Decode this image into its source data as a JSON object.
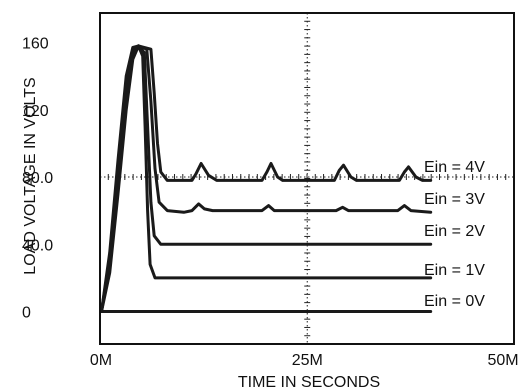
{
  "chart_data": {
    "type": "line",
    "xlabel": "TIME IN SECONDS",
    "ylabel": "LOAD VOLTAGE IN VOLTS",
    "xlim": [
      0,
      50
    ],
    "ylim": [
      -2,
      170
    ],
    "x_ticks": [
      {
        "value": 0,
        "label": "0M"
      },
      {
        "value": 25,
        "label": "25M"
      },
      {
        "value": 50,
        "label": "50M"
      }
    ],
    "y_ticks": [
      {
        "value": 0,
        "label": "0"
      },
      {
        "value": 40,
        "label": "40.0"
      },
      {
        "value": 80,
        "label": "80.0"
      },
      {
        "value": 120,
        "label": "120"
      },
      {
        "value": 160,
        "label": "160"
      }
    ],
    "grid": "center crosshair at x=25 and y=80",
    "series": [
      {
        "name": "Ein = 0V",
        "points": [
          [
            0,
            0
          ],
          [
            40,
            0
          ]
        ]
      },
      {
        "name": "Ein = 1V",
        "points": [
          [
            0,
            0
          ],
          [
            1,
            23
          ],
          [
            2,
            70
          ],
          [
            3,
            120
          ],
          [
            3.8,
            150
          ],
          [
            4.5,
            158
          ],
          [
            5.0,
            152
          ],
          [
            5.3,
            110
          ],
          [
            5.6,
            60
          ],
          [
            5.9,
            28
          ],
          [
            6.5,
            20
          ],
          [
            10,
            20
          ],
          [
            40,
            20
          ]
        ]
      },
      {
        "name": "Ein = 2V",
        "points": [
          [
            0,
            0
          ],
          [
            1,
            28
          ],
          [
            2,
            80
          ],
          [
            3,
            130
          ],
          [
            3.8,
            154
          ],
          [
            4.5,
            158
          ],
          [
            5.2,
            154
          ],
          [
            5.6,
            110
          ],
          [
            6.0,
            65
          ],
          [
            6.4,
            45
          ],
          [
            7.2,
            40
          ],
          [
            12,
            40
          ],
          [
            40,
            40
          ]
        ]
      },
      {
        "name": "Ein = 3V",
        "points": [
          [
            0,
            0
          ],
          [
            1,
            32
          ],
          [
            2,
            85
          ],
          [
            3,
            135
          ],
          [
            3.8,
            156
          ],
          [
            4.5,
            158
          ],
          [
            5.5,
            156
          ],
          [
            6.0,
            125
          ],
          [
            6.5,
            85
          ],
          [
            7.0,
            65
          ],
          [
            8.0,
            60
          ],
          [
            10.0,
            59
          ],
          [
            11.0,
            60
          ],
          [
            11.8,
            64
          ],
          [
            12.5,
            61
          ],
          [
            13.5,
            60
          ],
          [
            19.5,
            60
          ],
          [
            20.3,
            63
          ],
          [
            21.0,
            60
          ],
          [
            28.5,
            60
          ],
          [
            29.3,
            62
          ],
          [
            30.0,
            60
          ],
          [
            36.0,
            60
          ],
          [
            36.8,
            63
          ],
          [
            37.6,
            60
          ],
          [
            40,
            59
          ]
        ]
      },
      {
        "name": "Ein = 4V",
        "points": [
          [
            0,
            0
          ],
          [
            1,
            35
          ],
          [
            2,
            90
          ],
          [
            3,
            140
          ],
          [
            3.8,
            157
          ],
          [
            4.5,
            158
          ],
          [
            6.0,
            156
          ],
          [
            6.4,
            130
          ],
          [
            6.8,
            100
          ],
          [
            7.2,
            83
          ],
          [
            8.0,
            78
          ],
          [
            11.0,
            78
          ],
          [
            11.5,
            82
          ],
          [
            12.1,
            88
          ],
          [
            13.0,
            81
          ],
          [
            14.0,
            78
          ],
          [
            19.5,
            78
          ],
          [
            20.1,
            83
          ],
          [
            20.6,
            88
          ],
          [
            21.4,
            80
          ],
          [
            22.0,
            78
          ],
          [
            28.3,
            78
          ],
          [
            28.9,
            84
          ],
          [
            29.4,
            87
          ],
          [
            30.3,
            80
          ],
          [
            31.0,
            78
          ],
          [
            36.2,
            78
          ],
          [
            36.8,
            83
          ],
          [
            37.3,
            86
          ],
          [
            38.2,
            80
          ],
          [
            39.0,
            78
          ],
          [
            40,
            78
          ]
        ]
      }
    ]
  }
}
